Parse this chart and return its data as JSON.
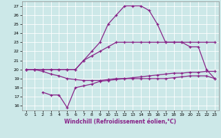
{
  "xlabel": "Windchill (Refroidissement éolien,°C)",
  "x_ticks": [
    0,
    1,
    2,
    3,
    4,
    5,
    6,
    7,
    8,
    9,
    10,
    11,
    12,
    13,
    14,
    15,
    16,
    17,
    18,
    19,
    20,
    21,
    22,
    23
  ],
  "ylim": [
    15.5,
    27.5
  ],
  "xlim": [
    -0.5,
    23.5
  ],
  "yticks": [
    16,
    17,
    18,
    19,
    20,
    21,
    22,
    23,
    24,
    25,
    26,
    27
  ],
  "background_color": "#cce8e8",
  "line_color": "#882288",
  "line1_x": [
    0,
    1,
    2,
    3,
    4,
    5,
    6,
    7,
    8,
    9,
    10,
    11,
    12,
    13,
    14,
    15,
    16,
    17,
    18,
    19,
    20,
    21,
    22,
    23
  ],
  "line1_y": [
    20,
    20,
    20,
    20,
    20,
    20,
    20,
    21,
    21.5,
    22,
    22.5,
    23,
    23,
    23,
    23,
    23,
    23,
    23,
    23,
    23,
    23,
    23,
    23,
    23
  ],
  "line2_x": [
    0,
    1,
    2,
    3,
    4,
    5,
    6,
    7,
    8,
    9,
    10,
    11,
    12,
    13,
    14,
    15,
    16,
    17,
    18,
    19,
    20,
    21,
    22,
    23
  ],
  "line2_y": [
    20,
    20,
    20,
    20,
    20,
    20,
    20,
    21,
    22,
    23,
    25,
    26,
    27,
    27,
    27,
    26.5,
    25,
    23,
    23,
    23,
    22.5,
    22.5,
    20,
    19
  ],
  "line3_x": [
    2,
    3,
    4,
    5,
    6,
    7,
    8,
    9,
    10,
    11,
    12,
    13,
    14,
    15,
    16,
    17,
    18,
    19,
    20,
    21,
    22,
    23
  ],
  "line3_y": [
    17.5,
    17.2,
    17.2,
    15.8,
    18.0,
    18.2,
    18.4,
    18.7,
    18.8,
    18.9,
    19.0,
    19.0,
    19.0,
    19.0,
    19.0,
    19.0,
    19.1,
    19.2,
    19.3,
    19.3,
    19.3,
    19.0
  ],
  "line4_x": [
    0,
    1,
    2,
    3,
    4,
    5,
    6,
    7,
    8,
    9,
    10,
    11,
    12,
    13,
    14,
    15,
    16,
    17,
    18,
    19,
    20,
    21,
    22,
    23
  ],
  "line4_y": [
    20,
    20,
    19.8,
    19.5,
    19.3,
    19.0,
    18.9,
    18.8,
    18.8,
    18.8,
    18.9,
    19.0,
    19.0,
    19.1,
    19.2,
    19.3,
    19.4,
    19.5,
    19.6,
    19.6,
    19.7,
    19.7,
    19.8,
    19.8
  ]
}
